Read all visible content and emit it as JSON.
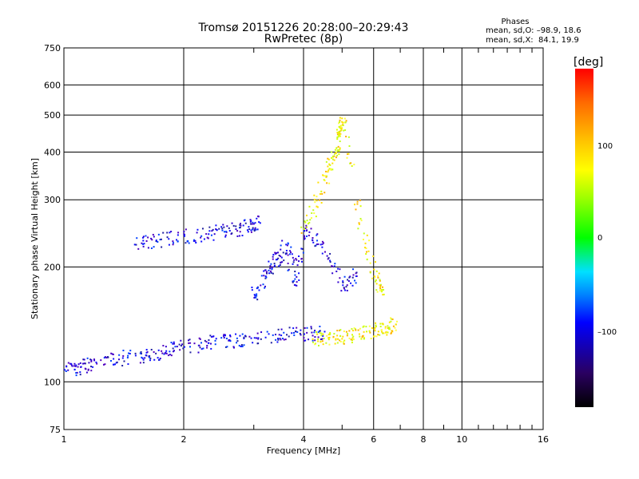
{
  "header": {
    "title_line1": "Tromsø 20151226 20:28:00–20:29:43",
    "title_line2": "RwPretec (8p)"
  },
  "phases": {
    "heading": "Phases",
    "line_o": "mean, sd,O: –98.9, 18.6",
    "line_x": "mean, sd,X:  84.1, 19.9"
  },
  "colorbar": {
    "unit": "[deg]",
    "ticks": [
      "100",
      "0",
      "–100"
    ],
    "colors_top_to_bottom": [
      "#ff0000",
      "#ffc800",
      "#ffff00",
      "#00ff00",
      "#00e0ff",
      "#0000ff",
      "#000000"
    ]
  },
  "chart_data": {
    "type": "scatter",
    "xlabel": "Frequency [MHz]",
    "ylabel": "Stationary phase Virtual Height [km]",
    "xscale": "log",
    "yscale": "log",
    "xlim": [
      1,
      16
    ],
    "ylim": [
      75,
      750
    ],
    "xticks": [
      1,
      2,
      4,
      6,
      8,
      10,
      16
    ],
    "yticks": [
      75,
      100,
      200,
      300,
      400,
      500,
      600,
      750
    ],
    "grid": true,
    "color_encodes": "phase [deg]",
    "series": [
      {
        "values_note": "O-mode low trace",
        "points": [
          [
            1.0,
            108
          ],
          [
            1.1,
            110
          ],
          [
            1.2,
            113
          ],
          [
            1.4,
            116
          ],
          [
            1.6,
            118
          ],
          [
            1.8,
            121
          ],
          [
            2.0,
            124
          ],
          [
            2.3,
            127
          ],
          [
            2.6,
            129
          ],
          [
            3.0,
            131
          ],
          [
            3.5,
            133
          ],
          [
            4.0,
            134
          ],
          [
            4.5,
            136
          ]
        ],
        "phase": -100
      },
      {
        "values_note": "O-mode upper trace",
        "points": [
          [
            1.5,
            230
          ],
          [
            1.7,
            236
          ],
          [
            2.0,
            242
          ],
          [
            2.3,
            245
          ],
          [
            2.6,
            250
          ],
          [
            2.9,
            256
          ],
          [
            3.1,
            262
          ]
        ],
        "phase": -100
      },
      {
        "values_note": "X-mode trace",
        "points": [
          [
            4.2,
            130
          ],
          [
            4.6,
            131
          ],
          [
            5.0,
            132
          ],
          [
            5.5,
            134
          ],
          [
            6.0,
            138
          ],
          [
            6.4,
            140
          ],
          [
            6.8,
            142
          ]
        ],
        "phase": 95
      },
      {
        "values_note": "X-mode spread F",
        "points": [
          [
            4.0,
            250
          ],
          [
            4.3,
            300
          ],
          [
            4.6,
            360
          ],
          [
            4.8,
            400
          ],
          [
            4.9,
            450
          ],
          [
            5.0,
            480
          ],
          [
            5.5,
            260
          ],
          [
            6.0,
            190
          ],
          [
            6.3,
            170
          ]
        ],
        "phase": 100
      },
      {
        "values_note": "O-mode spread F",
        "points": [
          [
            3.0,
            170
          ],
          [
            3.2,
            190
          ],
          [
            3.4,
            210
          ],
          [
            3.6,
            230
          ],
          [
            3.8,
            180
          ],
          [
            4.0,
            250
          ],
          [
            4.4,
            230
          ],
          [
            5.0,
            180
          ],
          [
            5.4,
            190
          ]
        ],
        "phase": -110
      }
    ]
  }
}
